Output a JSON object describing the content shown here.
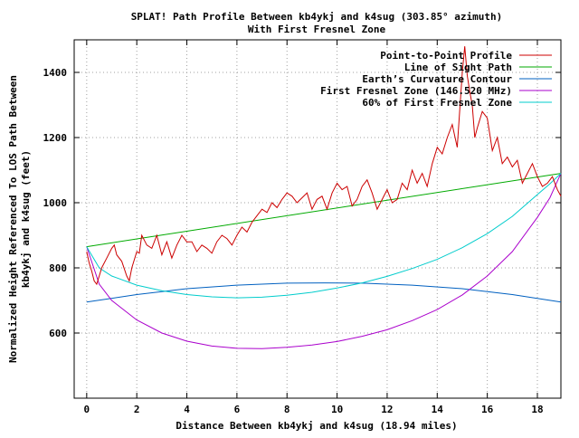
{
  "chart_data": {
    "type": "line",
    "title": "SPLAT! Path Profile Between kb4ykj and k4sug (303.85° azimuth)",
    "subtitle": "With First Fresnel Zone",
    "xlabel": "Distance Between kb4ykj and k4sug (18.94 miles)",
    "ylabel_line1": "Normalized Height Referenced To LOS Path Between",
    "ylabel_line2": "kb4ykj and k4sug (feet)",
    "xlim": [
      -0.5,
      18.94
    ],
    "ylim": [
      400,
      1500
    ],
    "x_ticks": [
      0,
      2,
      4,
      6,
      8,
      10,
      12,
      14,
      16,
      18
    ],
    "x_tick_labels": [
      "0",
      "2",
      "4",
      "6",
      "8",
      "10",
      "12",
      "14",
      "16",
      "18"
    ],
    "y_ticks": [
      600,
      800,
      1000,
      1200,
      1400
    ],
    "y_tick_labels": [
      "600",
      "800",
      "1000",
      "1200",
      "1400"
    ],
    "grid": true,
    "legend_position": "top-right",
    "series": [
      {
        "name": "Point-to-Point Profile",
        "color": "#cc0000",
        "x": [
          0,
          0.1,
          0.2,
          0.3,
          0.4,
          0.5,
          0.6,
          0.8,
          1.0,
          1.1,
          1.2,
          1.4,
          1.6,
          1.7,
          1.8,
          2.0,
          2.1,
          2.2,
          2.4,
          2.6,
          2.8,
          3.0,
          3.2,
          3.4,
          3.6,
          3.8,
          4.0,
          4.2,
          4.4,
          4.6,
          4.8,
          5.0,
          5.2,
          5.4,
          5.6,
          5.8,
          6.0,
          6.2,
          6.4,
          6.6,
          6.8,
          7.0,
          7.2,
          7.4,
          7.6,
          7.8,
          8.0,
          8.2,
          8.4,
          8.6,
          8.8,
          9.0,
          9.2,
          9.4,
          9.6,
          9.8,
          10.0,
          10.2,
          10.4,
          10.6,
          10.8,
          11.0,
          11.2,
          11.4,
          11.6,
          11.8,
          12.0,
          12.2,
          12.4,
          12.6,
          12.8,
          13.0,
          13.2,
          13.4,
          13.6,
          13.8,
          14.0,
          14.2,
          14.4,
          14.6,
          14.8,
          15.0,
          15.1,
          15.2,
          15.3,
          15.4,
          15.5,
          15.6,
          15.8,
          16.0,
          16.2,
          16.4,
          16.6,
          16.8,
          17.0,
          17.2,
          17.4,
          17.6,
          17.8,
          18.0,
          18.2,
          18.4,
          18.6,
          18.8,
          18.94
        ],
        "values": [
          850,
          815,
          790,
          760,
          750,
          775,
          800,
          830,
          860,
          870,
          840,
          820,
          775,
          760,
          800,
          850,
          845,
          900,
          870,
          860,
          900,
          840,
          880,
          830,
          870,
          900,
          880,
          880,
          850,
          870,
          860,
          845,
          880,
          900,
          890,
          870,
          900,
          925,
          910,
          940,
          960,
          980,
          970,
          1000,
          985,
          1010,
          1030,
          1020,
          1000,
          1015,
          1030,
          980,
          1010,
          1020,
          980,
          1030,
          1060,
          1040,
          1050,
          990,
          1010,
          1050,
          1070,
          1030,
          980,
          1010,
          1040,
          1000,
          1010,
          1060,
          1040,
          1100,
          1060,
          1090,
          1050,
          1120,
          1170,
          1150,
          1200,
          1240,
          1170,
          1400,
          1480,
          1390,
          1340,
          1300,
          1200,
          1230,
          1280,
          1260,
          1160,
          1200,
          1120,
          1140,
          1110,
          1130,
          1060,
          1090,
          1120,
          1080,
          1050,
          1060,
          1080,
          1040,
          1020
        ]
      },
      {
        "name": "Line of Sight Path",
        "color": "#00aa00",
        "x": [
          0,
          18.94
        ],
        "values": [
          865,
          1090
        ]
      },
      {
        "name": "Earth’s Curvature Contour",
        "color": "#0060c0",
        "x": [
          0,
          2,
          4,
          6,
          8,
          9.5,
          11,
          13,
          15,
          17,
          18.94
        ],
        "values": [
          695,
          718,
          736,
          747,
          753,
          754,
          753,
          747,
          736,
          718,
          695
        ]
      },
      {
        "name": "First Fresnel Zone (146.520 MHz)",
        "color": "#aa00cc",
        "x": [
          0,
          0.5,
          1,
          2,
          3,
          4,
          5,
          6,
          7,
          8,
          9,
          10,
          11,
          12,
          13,
          14,
          15,
          16,
          17,
          18,
          18.5,
          18.94
        ],
        "values": [
          865,
          750,
          700,
          640,
          600,
          575,
          560,
          553,
          552,
          556,
          563,
          574,
          590,
          610,
          638,
          672,
          717,
          775,
          850,
          955,
          1015,
          1090
        ]
      },
      {
        "name": "60% of First Fresnel Zone",
        "color": "#00cccc",
        "x": [
          0,
          0.5,
          1,
          2,
          3,
          4,
          5,
          6,
          7,
          8,
          9,
          10,
          11,
          12,
          13,
          14,
          15,
          16,
          17,
          18,
          18.5,
          18.94
        ],
        "values": [
          865,
          800,
          775,
          747,
          730,
          718,
          711,
          708,
          710,
          716,
          725,
          738,
          754,
          774,
          798,
          826,
          862,
          905,
          958,
          1025,
          1058,
          1090
        ]
      }
    ]
  }
}
